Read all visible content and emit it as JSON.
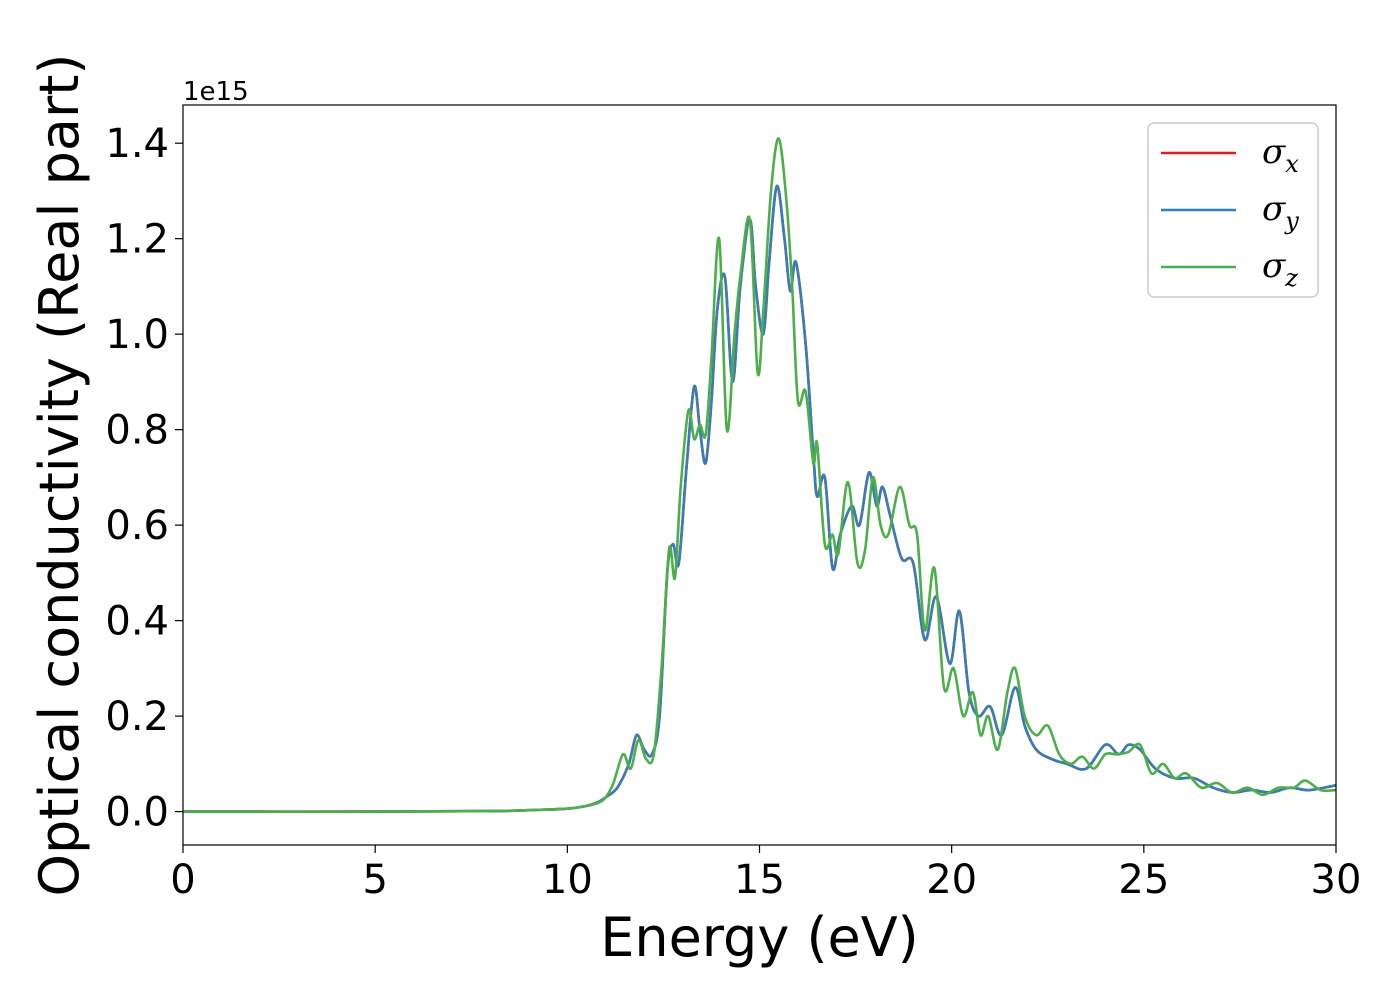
{
  "chart_data": {
    "type": "line",
    "xlabel": "Energy (eV)",
    "ylabel": "Optical conductivity (Real part)",
    "y_offset_label": "1e15",
    "xlim": [
      0,
      30
    ],
    "ylim": [
      -0.07,
      1.48
    ],
    "xticks": [
      0,
      5,
      10,
      15,
      20,
      25,
      30
    ],
    "xtick_labels": [
      "0",
      "5",
      "10",
      "15",
      "20",
      "25",
      "30"
    ],
    "yticks": [
      0.0,
      0.2,
      0.4,
      0.6,
      0.8,
      1.0,
      1.2,
      1.4
    ],
    "ytick_labels": [
      "0.0",
      "0.2",
      "0.4",
      "0.6",
      "0.8",
      "1.0",
      "1.2",
      "1.4"
    ],
    "grid": false,
    "legend": "top-right",
    "series": [
      {
        "name": "σx",
        "legend_symbol": "σ",
        "legend_sub": "x",
        "color": "#e41a1c",
        "x": [
          0,
          5,
          8,
          9,
          10,
          10.5,
          10.8,
          11.0,
          11.3,
          11.6,
          11.8,
          12.0,
          12.2,
          12.4,
          12.6,
          12.75,
          12.9,
          13.1,
          13.3,
          13.45,
          13.6,
          13.75,
          13.9,
          14.1,
          14.3,
          14.5,
          14.75,
          14.9,
          15.1,
          15.25,
          15.45,
          15.65,
          15.8,
          15.95,
          16.2,
          16.4,
          16.5,
          16.7,
          16.9,
          17.1,
          17.4,
          17.6,
          17.85,
          18.05,
          18.2,
          18.4,
          18.7,
          19.0,
          19.3,
          19.6,
          19.95,
          20.2,
          20.45,
          20.7,
          21.0,
          21.3,
          21.65,
          21.9,
          22.2,
          22.6,
          23.0,
          23.5,
          24.0,
          24.35,
          24.6,
          24.9,
          25.3,
          25.8,
          26.3,
          26.8,
          27.3,
          27.8,
          28.3,
          28.8,
          29.3,
          30.0
        ],
        "values": [
          0.0,
          0.0,
          0.001,
          0.003,
          0.006,
          0.012,
          0.02,
          0.03,
          0.05,
          0.1,
          0.16,
          0.13,
          0.12,
          0.2,
          0.5,
          0.56,
          0.52,
          0.72,
          0.89,
          0.8,
          0.73,
          0.86,
          1.05,
          1.12,
          0.9,
          1.1,
          1.24,
          1.1,
          1.0,
          1.15,
          1.31,
          1.2,
          1.09,
          1.15,
          0.98,
          0.75,
          0.66,
          0.7,
          0.51,
          0.58,
          0.64,
          0.6,
          0.71,
          0.64,
          0.68,
          0.62,
          0.53,
          0.52,
          0.36,
          0.45,
          0.31,
          0.42,
          0.25,
          0.2,
          0.22,
          0.16,
          0.26,
          0.18,
          0.13,
          0.11,
          0.1,
          0.09,
          0.14,
          0.12,
          0.14,
          0.13,
          0.09,
          0.07,
          0.07,
          0.05,
          0.04,
          0.045,
          0.04,
          0.05,
          0.045,
          0.055
        ]
      },
      {
        "name": "σy",
        "legend_symbol": "σ",
        "legend_sub": "y",
        "color": "#377eb8",
        "x": [
          0,
          5,
          8,
          9,
          10,
          10.5,
          10.8,
          11.0,
          11.3,
          11.6,
          11.8,
          12.0,
          12.2,
          12.4,
          12.6,
          12.75,
          12.9,
          13.1,
          13.3,
          13.45,
          13.6,
          13.75,
          13.9,
          14.1,
          14.3,
          14.5,
          14.75,
          14.9,
          15.1,
          15.25,
          15.45,
          15.65,
          15.8,
          15.95,
          16.2,
          16.4,
          16.5,
          16.7,
          16.9,
          17.1,
          17.4,
          17.6,
          17.85,
          18.05,
          18.2,
          18.4,
          18.7,
          19.0,
          19.3,
          19.6,
          19.95,
          20.2,
          20.45,
          20.7,
          21.0,
          21.3,
          21.65,
          21.9,
          22.2,
          22.6,
          23.0,
          23.5,
          24.0,
          24.35,
          24.6,
          24.9,
          25.3,
          25.8,
          26.3,
          26.8,
          27.3,
          27.8,
          28.3,
          28.8,
          29.3,
          30.0
        ],
        "values": [
          0.0,
          0.0,
          0.001,
          0.003,
          0.006,
          0.012,
          0.02,
          0.03,
          0.05,
          0.1,
          0.16,
          0.13,
          0.12,
          0.2,
          0.5,
          0.56,
          0.52,
          0.72,
          0.89,
          0.8,
          0.73,
          0.86,
          1.05,
          1.12,
          0.9,
          1.1,
          1.24,
          1.1,
          1.0,
          1.15,
          1.31,
          1.2,
          1.09,
          1.15,
          0.98,
          0.75,
          0.66,
          0.7,
          0.51,
          0.58,
          0.64,
          0.6,
          0.71,
          0.64,
          0.68,
          0.62,
          0.53,
          0.52,
          0.36,
          0.45,
          0.31,
          0.42,
          0.25,
          0.2,
          0.22,
          0.16,
          0.26,
          0.18,
          0.13,
          0.11,
          0.1,
          0.09,
          0.14,
          0.12,
          0.14,
          0.13,
          0.09,
          0.07,
          0.07,
          0.05,
          0.04,
          0.045,
          0.04,
          0.05,
          0.045,
          0.055
        ]
      },
      {
        "name": "σz",
        "legend_symbol": "σ",
        "legend_sub": "z",
        "color": "#4daf4a",
        "x": [
          0,
          5,
          8,
          9,
          10,
          10.5,
          10.8,
          11.0,
          11.2,
          11.45,
          11.65,
          11.85,
          12.05,
          12.25,
          12.45,
          12.65,
          12.8,
          12.95,
          13.15,
          13.3,
          13.45,
          13.6,
          13.75,
          13.95,
          14.15,
          14.35,
          14.5,
          14.75,
          14.95,
          15.1,
          15.3,
          15.5,
          15.7,
          15.85,
          16.0,
          16.2,
          16.4,
          16.5,
          16.7,
          16.9,
          17.05,
          17.3,
          17.55,
          17.75,
          17.95,
          18.15,
          18.35,
          18.65,
          18.9,
          19.1,
          19.3,
          19.55,
          19.8,
          20.05,
          20.3,
          20.55,
          20.75,
          20.95,
          21.2,
          21.45,
          21.65,
          21.9,
          22.2,
          22.5,
          22.8,
          23.1,
          23.4,
          23.7,
          24.0,
          24.3,
          24.6,
          24.9,
          25.2,
          25.5,
          25.8,
          26.1,
          26.5,
          26.9,
          27.3,
          27.7,
          28.1,
          28.5,
          28.9,
          29.2,
          29.6,
          30.0
        ],
        "values": [
          0.0,
          0.0,
          0.001,
          0.003,
          0.006,
          0.012,
          0.018,
          0.03,
          0.06,
          0.12,
          0.09,
          0.15,
          0.11,
          0.12,
          0.3,
          0.55,
          0.49,
          0.68,
          0.84,
          0.78,
          0.81,
          0.79,
          0.95,
          1.2,
          0.8,
          1.0,
          1.12,
          1.24,
          0.92,
          1.05,
          1.3,
          1.41,
          1.28,
          1.1,
          0.86,
          0.88,
          0.73,
          0.77,
          0.56,
          0.58,
          0.54,
          0.69,
          0.52,
          0.55,
          0.7,
          0.6,
          0.58,
          0.68,
          0.6,
          0.58,
          0.38,
          0.51,
          0.26,
          0.3,
          0.2,
          0.25,
          0.16,
          0.2,
          0.13,
          0.25,
          0.3,
          0.2,
          0.16,
          0.18,
          0.12,
          0.1,
          0.115,
          0.09,
          0.12,
          0.12,
          0.125,
          0.14,
          0.08,
          0.1,
          0.07,
          0.08,
          0.05,
          0.06,
          0.04,
          0.05,
          0.035,
          0.05,
          0.05,
          0.065,
          0.045,
          0.045
        ]
      }
    ]
  }
}
